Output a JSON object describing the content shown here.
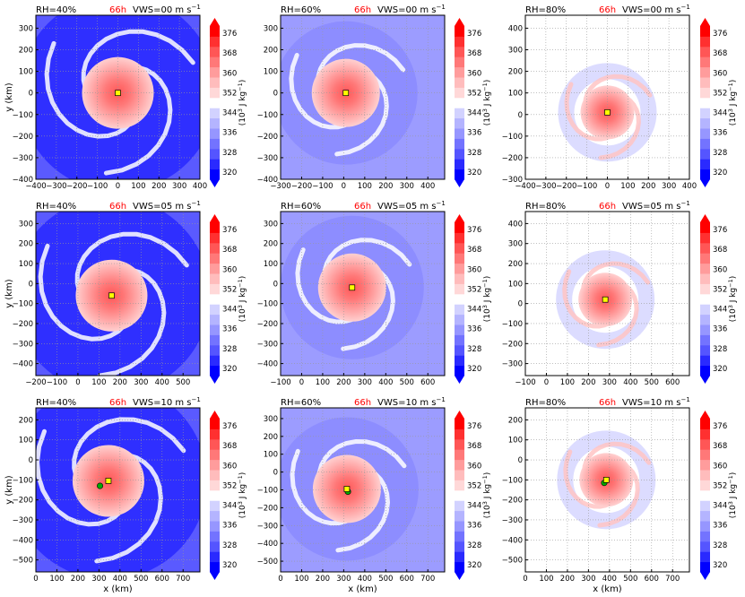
{
  "figure": {
    "xlabel": "x (km)",
    "ylabel": "y (km)",
    "colorbar": {
      "ticks": [
        "376",
        "368",
        "360",
        "352",
        "344",
        "336",
        "328",
        "320"
      ],
      "label_base": "(10",
      "label_exp": "3",
      "label_unit": " J kg",
      "label_exp2": "−1",
      "label_close": ")"
    }
  },
  "colors": {
    "levels": [
      "#0000ff",
      "#2a2aff",
      "#5555ff",
      "#7373ff",
      "#9696ff",
      "#b4b4ff",
      "#d2d2ff",
      "#ffffff",
      "#ffd8d8",
      "#ffbcbc",
      "#ff9c9c",
      "#ff7878",
      "#ff5656",
      "#ff3030",
      "#ff0000"
    ],
    "background_ring": [
      "#5a5aff",
      "#9c9cff",
      "#d0d0ff"
    ],
    "center_marker": "#ffff00",
    "secondary_marker": "#00aa00",
    "time_red": "#ff0000"
  },
  "chart_data": [
    {
      "type": "heatmap",
      "rh": "RH=40%",
      "time": "66h",
      "vws": "VWS=00 m s",
      "vws_exp": "−1",
      "xticks": [
        "−400",
        "−300",
        "−200",
        "−100",
        "0",
        "100",
        "200",
        "300",
        "400"
      ],
      "yticks": [
        "300",
        "200",
        "100",
        "0",
        "−100",
        "−200",
        "−300",
        "−400"
      ],
      "show_xlabel": false,
      "show_ylabel": true,
      "center": [
        0,
        0
      ],
      "secondary": null
    },
    {
      "type": "heatmap",
      "rh": "RH=60%",
      "time": "66h",
      "vws": "VWS=00 m s",
      "vws_exp": "−1",
      "xticks": [
        "−300",
        "−200",
        "−100",
        "0",
        "100",
        "200",
        "300",
        "400"
      ],
      "yticks": [
        "300",
        "200",
        "100",
        "0",
        "−100",
        "−200",
        "−300",
        "−400"
      ],
      "show_xlabel": false,
      "show_ylabel": false,
      "center": [
        10,
        0
      ],
      "secondary": null
    },
    {
      "type": "heatmap",
      "rh": "RH=80%",
      "time": "66h",
      "vws": "VWS=00 m s",
      "vws_exp": "−1",
      "xticks": [
        "−400",
        "−300",
        "−200",
        "−100",
        "0",
        "100",
        "200",
        "300",
        "400"
      ],
      "yticks": [
        "400",
        "300",
        "200",
        "100",
        "0",
        "−100",
        "−200",
        "−300"
      ],
      "show_xlabel": false,
      "show_ylabel": false,
      "center": [
        0,
        10
      ],
      "secondary": null
    },
    {
      "type": "heatmap",
      "rh": "RH=40%",
      "time": "66h",
      "vws": "VWS=05 m s",
      "vws_exp": "−1",
      "xticks": [
        "−200",
        "−100",
        "0",
        "100",
        "200",
        "300",
        "400",
        "500"
      ],
      "yticks": [
        "300",
        "200",
        "100",
        "0",
        "−100",
        "−200",
        "−300",
        "−400"
      ],
      "show_xlabel": false,
      "show_ylabel": true,
      "center": [
        160,
        -60
      ],
      "secondary": null
    },
    {
      "type": "heatmap",
      "rh": "RH=60%",
      "time": "66h",
      "vws": "VWS=05 m s",
      "vws_exp": "−1",
      "xticks": [
        "−100",
        "0",
        "100",
        "200",
        "300",
        "400",
        "500",
        "600"
      ],
      "yticks": [
        "300",
        "200",
        "100",
        "0",
        "−100",
        "−200",
        "−300",
        "−400"
      ],
      "show_xlabel": false,
      "show_ylabel": false,
      "center": [
        240,
        -20
      ],
      "secondary": null
    },
    {
      "type": "heatmap",
      "rh": "RH=80%",
      "time": "66h",
      "vws": "VWS=05 m s",
      "vws_exp": "−1",
      "xticks": [
        "−100",
        "0",
        "100",
        "200",
        "300",
        "400",
        "500",
        "600"
      ],
      "yticks": [
        "400",
        "300",
        "200",
        "100",
        "0",
        "−100",
        "−200",
        "−300"
      ],
      "show_xlabel": false,
      "show_ylabel": false,
      "center": [
        280,
        20
      ],
      "secondary": null
    },
    {
      "type": "heatmap",
      "rh": "RH=40%",
      "time": "66h",
      "vws": "VWS=10 m s",
      "vws_exp": "−1",
      "xticks": [
        "0",
        "100",
        "200",
        "300",
        "400",
        "500",
        "600",
        "700"
      ],
      "yticks": [
        "200",
        "100",
        "0",
        "−100",
        "−200",
        "−300",
        "−400",
        "−500"
      ],
      "show_xlabel": true,
      "show_ylabel": true,
      "center": [
        345,
        -105
      ],
      "secondary": [
        305,
        -130
      ]
    },
    {
      "type": "heatmap",
      "rh": "RH=60%",
      "time": "66h",
      "vws": "VWS=10 m s",
      "vws_exp": "−1",
      "xticks": [
        "0",
        "100",
        "200",
        "300",
        "400",
        "500",
        "600",
        "700"
      ],
      "yticks": [
        "300",
        "200",
        "100",
        "0",
        "−100",
        "−200",
        "−300",
        "−400",
        "−500"
      ],
      "show_xlabel": true,
      "show_ylabel": false,
      "center": [
        315,
        -95
      ],
      "secondary": [
        320,
        -110
      ]
    },
    {
      "type": "heatmap",
      "rh": "RH=80%",
      "time": "66h",
      "vws": "VWS=10 m s",
      "vws_exp": "−1",
      "xticks": [
        "0",
        "100",
        "200",
        "300",
        "400",
        "500",
        "600",
        "700"
      ],
      "yticks": [
        "200",
        "100",
        "0",
        "−100",
        "−200",
        "−300",
        "−400",
        "−500"
      ],
      "show_xlabel": true,
      "show_ylabel": false,
      "center": [
        385,
        -100
      ],
      "secondary": [
        375,
        -115
      ]
    }
  ]
}
